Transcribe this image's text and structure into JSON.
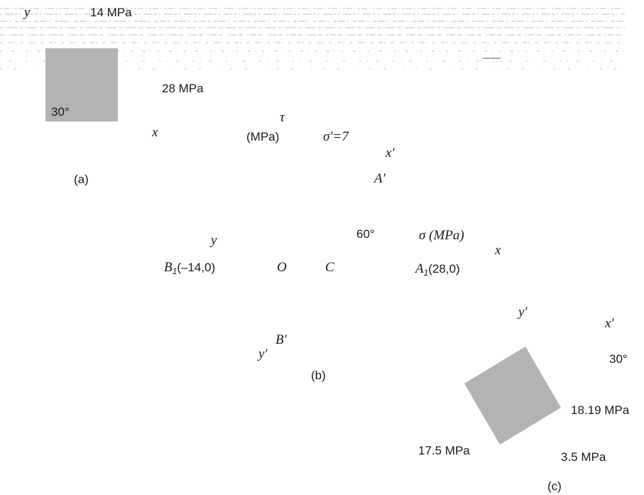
{
  "panel_a": {
    "label": "(a)",
    "y_axis": "y",
    "x_axis": "x",
    "shear_value": "14 MPa",
    "normal_value": "28 MPa",
    "angle": "30°"
  },
  "panel_b": {
    "label": "(b)",
    "tau_symbol": "τ",
    "tau_unit": "(MPa)",
    "sigma_prime": "σ′=7",
    "x_prime": "x′",
    "a_prime": "A′",
    "angle": "60°",
    "sigma_axis": "σ (MPa)",
    "x_axis": "x",
    "y_axis": "y",
    "b1_letter": "B",
    "b1_sub": "1",
    "b1_coords": "(–14,0)",
    "origin": "O",
    "center": "C",
    "a1_letter": "A",
    "a1_sub": "1",
    "a1_coords": "(28,0)",
    "b_prime": "B′",
    "y_prime": "y′"
  },
  "panel_c": {
    "label": "(c)",
    "y_prime": "y′",
    "x_prime": "x′",
    "angle": "30°",
    "value_1": "18.19 MPa",
    "value_2": "17.5 MPa",
    "value_3": "3.5 MPa"
  },
  "colors": {
    "element_fill": "#b3b3b3",
    "line": "#9a9a9a",
    "text": "#1a1a1a"
  }
}
